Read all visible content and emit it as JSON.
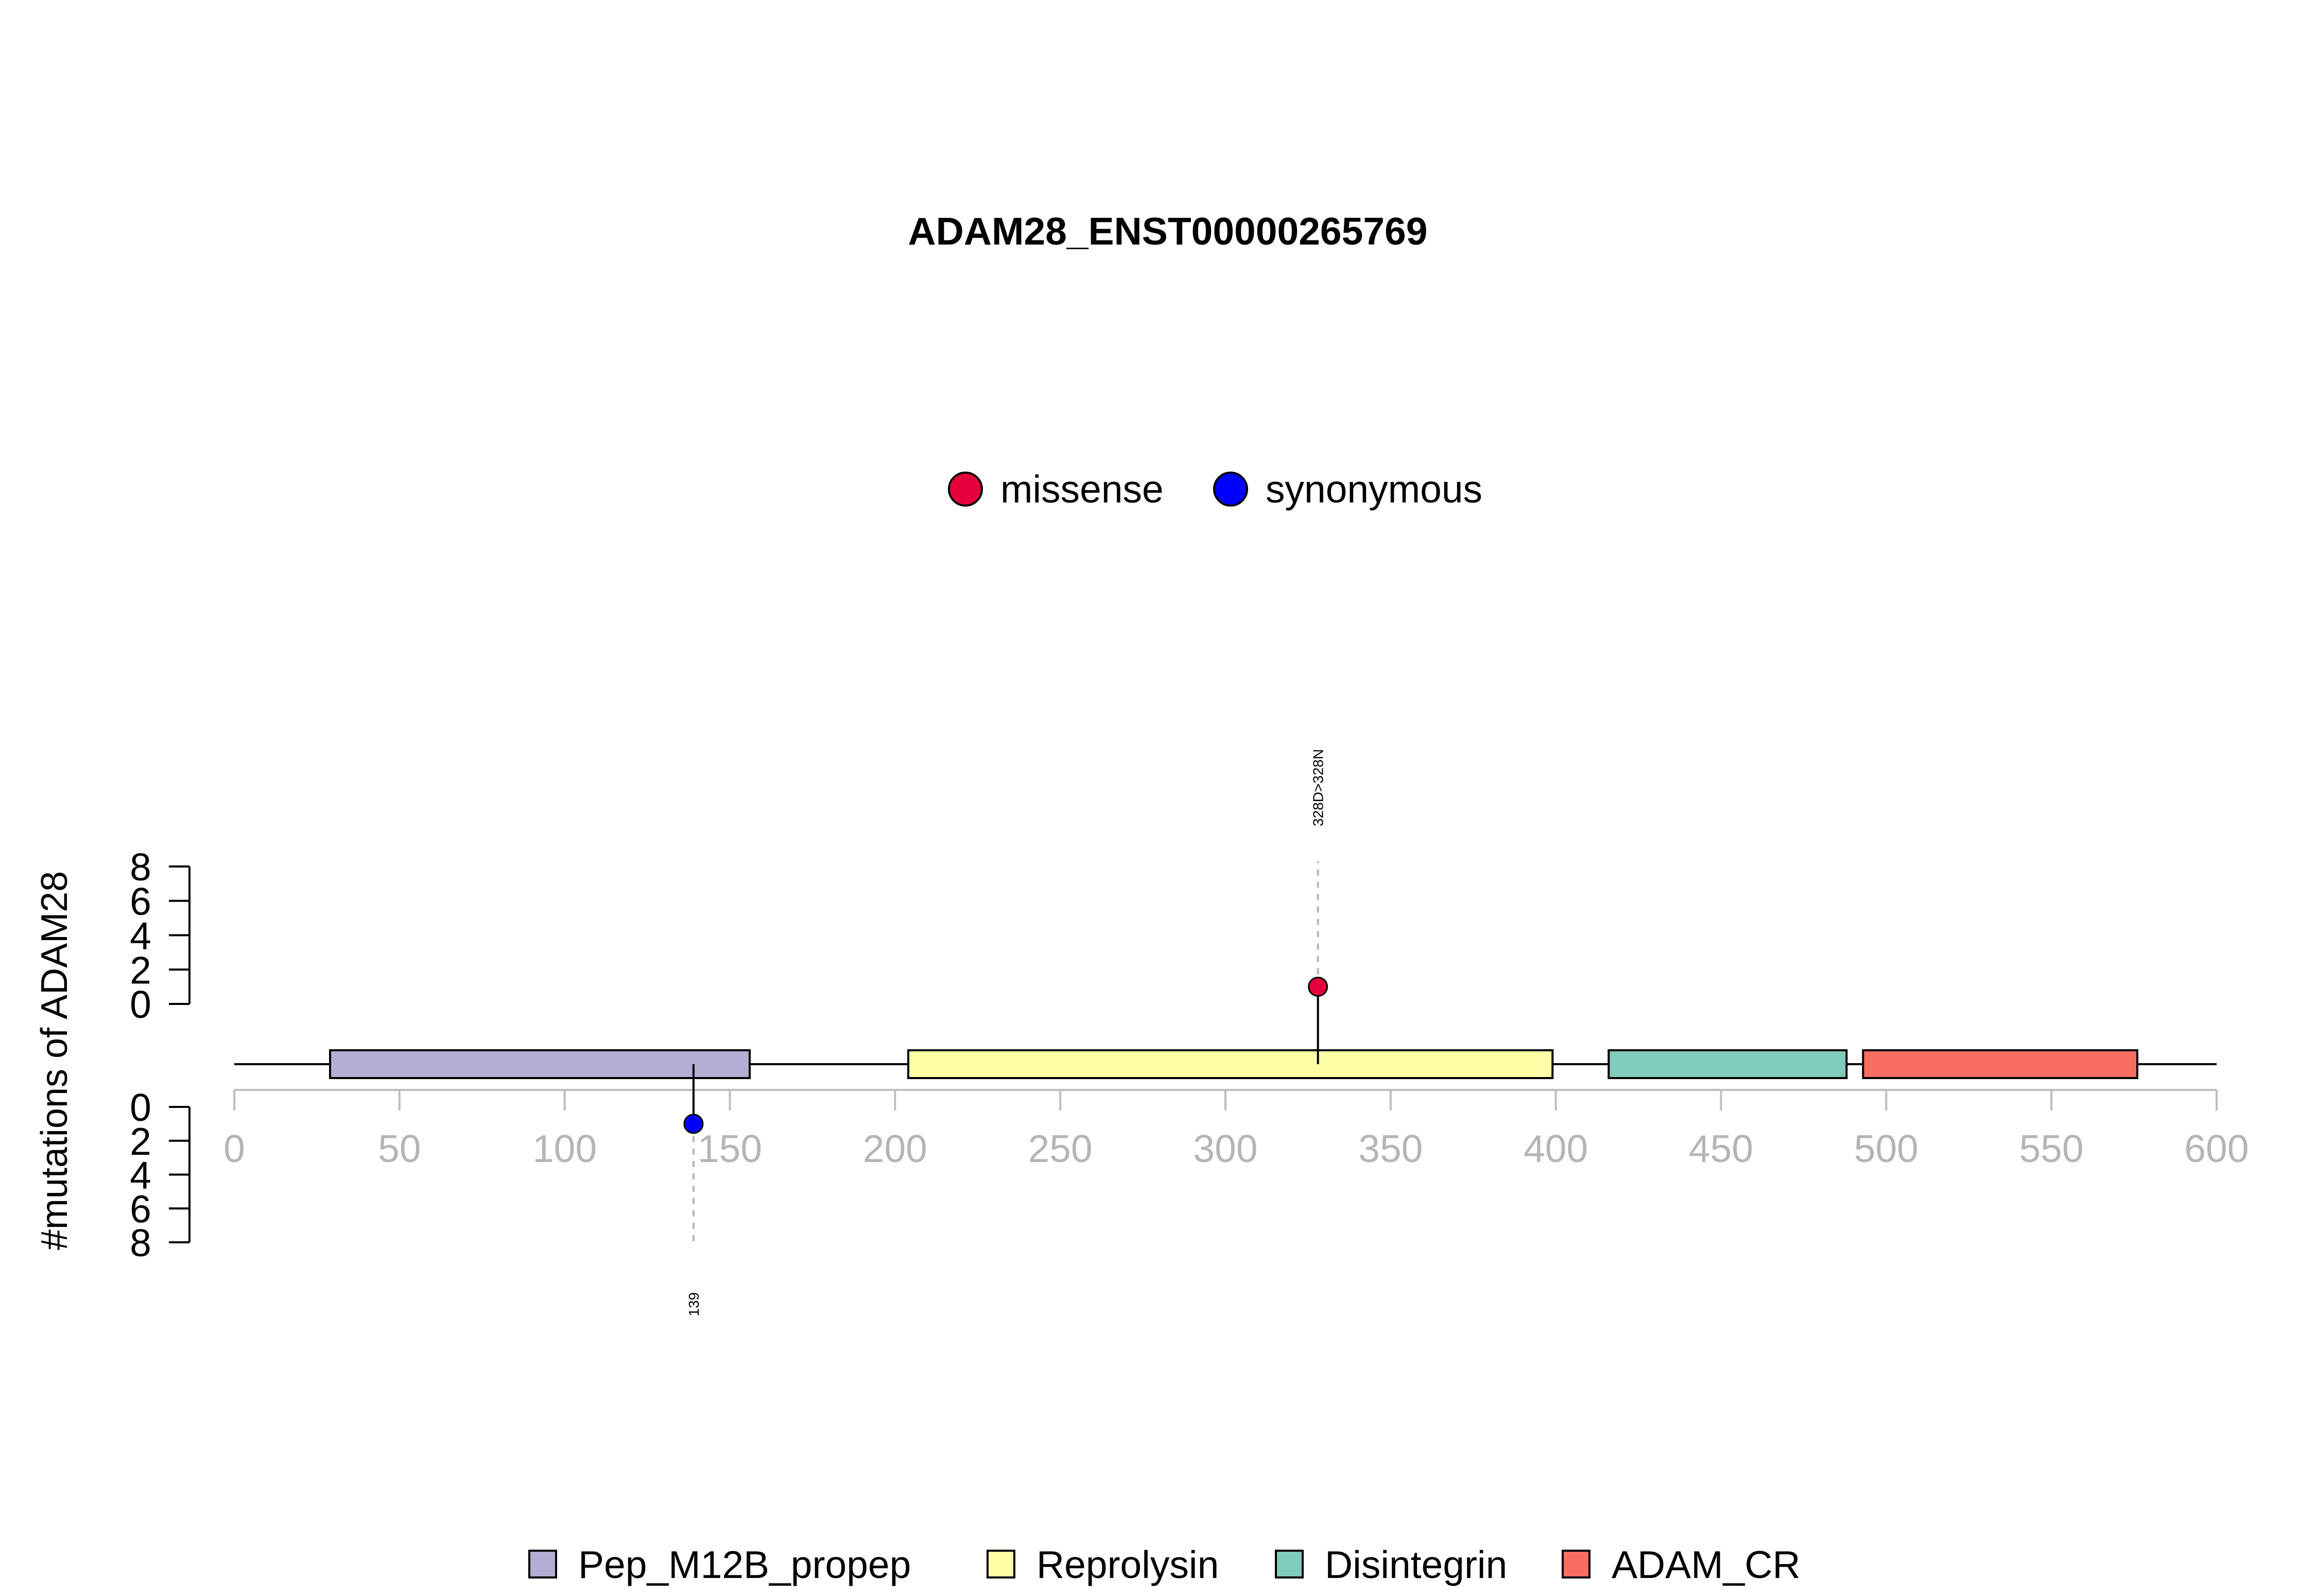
{
  "chart_data": {
    "type": "lollipop",
    "title": "ADAM28_ENST00000265769",
    "ylabel": "#mutations of ADAM28",
    "xlim": [
      0,
      600
    ],
    "x_ticks": [
      0,
      50,
      100,
      150,
      200,
      250,
      300,
      350,
      400,
      450,
      500,
      550,
      600
    ],
    "y_ticks_top": [
      0,
      2,
      4,
      6,
      8
    ],
    "y_ticks_bottom": [
      0,
      2,
      4,
      6,
      8
    ],
    "ylim": [
      0,
      8
    ],
    "legend_mutations": [
      {
        "label": "missense",
        "color": "#e4003a"
      },
      {
        "label": "synonymous",
        "color": "#0000ff"
      }
    ],
    "domains": [
      {
        "name": "Pep_M12B_propep",
        "start": 29,
        "end": 156,
        "color": "#b3aed3"
      },
      {
        "name": "Reprolysin",
        "start": 204,
        "end": 399,
        "color": "#ffffa8"
      },
      {
        "name": "Disintegrin",
        "start": 416,
        "end": 488,
        "color": "#80cbb9"
      },
      {
        "name": "ADAM_CR",
        "start": 493,
        "end": 576,
        "color": "#f76d61"
      }
    ],
    "mutations": [
      {
        "position": 328,
        "count": 1,
        "type": "missense",
        "side": "top",
        "label": "328D>328N",
        "color": "#e4003a"
      },
      {
        "position": 139,
        "count": 1,
        "type": "synonymous",
        "side": "bottom",
        "label": "139",
        "color": "#0000ff"
      }
    ]
  }
}
